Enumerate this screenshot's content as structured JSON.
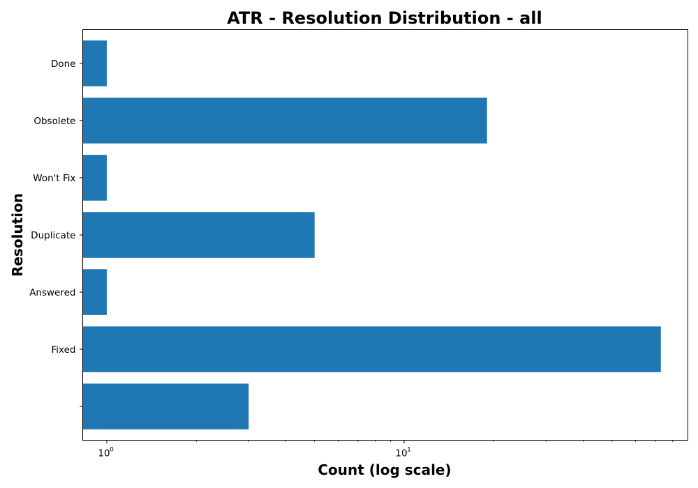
{
  "chart_data": {
    "type": "bar",
    "orientation": "horizontal",
    "title": "ATR - Resolution Distribution - all",
    "xlabel": "Count (log scale)",
    "ylabel": "Resolution",
    "x_scale": "log",
    "xlim": [
      0.83,
      90
    ],
    "categories": [
      "",
      "Fixed",
      "Answered",
      "Duplicate",
      "Won't Fix",
      "Obsolete",
      "Done"
    ],
    "values": [
      3,
      73,
      1,
      5,
      1,
      19,
      1
    ],
    "x_major_ticks": [
      {
        "value": 1,
        "base": "10",
        "exp": "0"
      },
      {
        "value": 10,
        "base": "10",
        "exp": "1"
      }
    ],
    "x_minor_ticks": [
      2,
      3,
      4,
      5,
      6,
      7,
      8,
      9,
      20,
      30,
      40,
      50,
      60,
      70,
      80
    ],
    "bar_color": "#1f77b4",
    "grid": false,
    "legend": "none"
  }
}
